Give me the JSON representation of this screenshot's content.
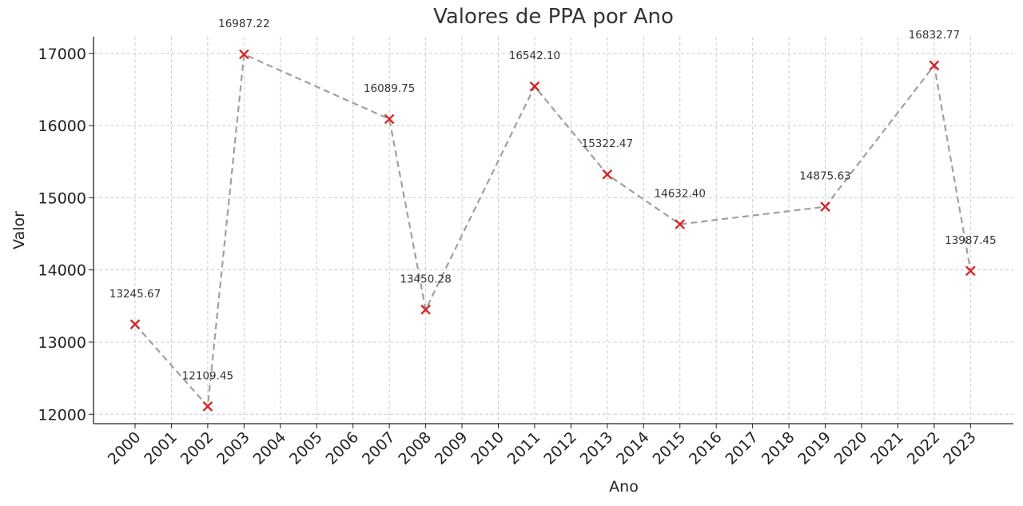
{
  "chart_data": {
    "type": "line",
    "title": "Valores de PPA por Ano",
    "xlabel": "Ano",
    "ylabel": "Valor",
    "x_categories": [
      "2000",
      "2001",
      "2002",
      "2003",
      "2004",
      "2005",
      "2006",
      "2007",
      "2008",
      "2009",
      "2010",
      "2011",
      "2012",
      "2013",
      "2014",
      "2015",
      "2016",
      "2017",
      "2018",
      "2019",
      "2020",
      "2021",
      "2022",
      "2023"
    ],
    "series": [
      {
        "x": [
          "2000",
          "2002",
          "2003",
          "2007",
          "2008",
          "2011",
          "2013",
          "2015",
          "2019",
          "2022",
          "2023"
        ],
        "values": [
          13245.67,
          12109.45,
          16987.22,
          16089.75,
          13450.28,
          16542.1,
          15322.47,
          14632.4,
          14875.63,
          16832.77,
          13987.45
        ],
        "labels": [
          "13245.67",
          "12109.45",
          "16987.22",
          "16089.75",
          "13450.28",
          "16542.10",
          "15322.47",
          "14632.40",
          "14875.63",
          "16832.77",
          "13987.45"
        ]
      }
    ],
    "y_ticks": [
      12000,
      13000,
      14000,
      15000,
      16000,
      17000
    ],
    "ylim": [
      11870,
      17230
    ],
    "grid": true,
    "line_style": "dashed",
    "line_color": "#a0a0a0",
    "marker": "x",
    "marker_color": "#d62728"
  }
}
